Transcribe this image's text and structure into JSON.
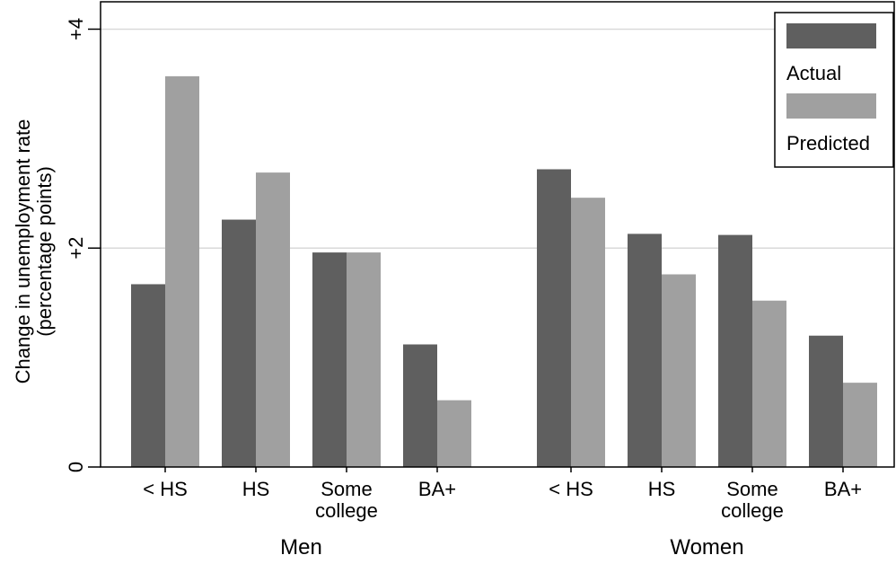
{
  "chart_data": {
    "type": "bar",
    "ylabel": [
      "Change in unemployment rate",
      "(percentage points)"
    ],
    "ylim": [
      0,
      4.25
    ],
    "yticks": [
      {
        "value": 0,
        "label": "0"
      },
      {
        "value": 2,
        "label": "+2"
      },
      {
        "value": 4,
        "label": "+4"
      }
    ],
    "grid": true,
    "legend_placement": "top-right",
    "groups": [
      {
        "name": "Men",
        "categories": [
          [
            "< HS"
          ],
          [
            "HS"
          ],
          [
            "Some",
            "college"
          ],
          [
            "BA+"
          ]
        ]
      },
      {
        "name": "Women",
        "categories": [
          [
            "< HS"
          ],
          [
            "HS"
          ],
          [
            "Some",
            "college"
          ],
          [
            "BA+"
          ]
        ]
      }
    ],
    "series": [
      {
        "name": "Actual",
        "color": "#5f5f5f",
        "values": [
          1.67,
          2.26,
          1.96,
          1.12,
          2.72,
          2.13,
          2.12,
          1.2
        ]
      },
      {
        "name": "Predicted",
        "color": "#a0a0a0",
        "values": [
          3.57,
          2.69,
          1.96,
          0.61,
          2.46,
          1.76,
          1.52,
          0.77
        ]
      }
    ]
  }
}
